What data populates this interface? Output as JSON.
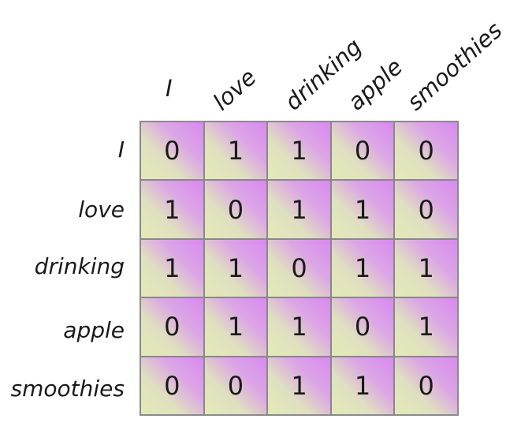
{
  "columns": [
    "I",
    "love",
    "drinking",
    "apple",
    "smoothies"
  ],
  "rows": [
    "I",
    "love",
    "drinking",
    "apple",
    "smoothies"
  ],
  "matrix": [
    [
      "0",
      "1",
      "1",
      "0",
      "0"
    ],
    [
      "1",
      "0",
      "1",
      "1",
      "0"
    ],
    [
      "1",
      "1",
      "0",
      "1",
      "1"
    ],
    [
      "0",
      "1",
      "1",
      "0",
      "1"
    ],
    [
      "0",
      "0",
      "1",
      "1",
      "0"
    ]
  ]
}
